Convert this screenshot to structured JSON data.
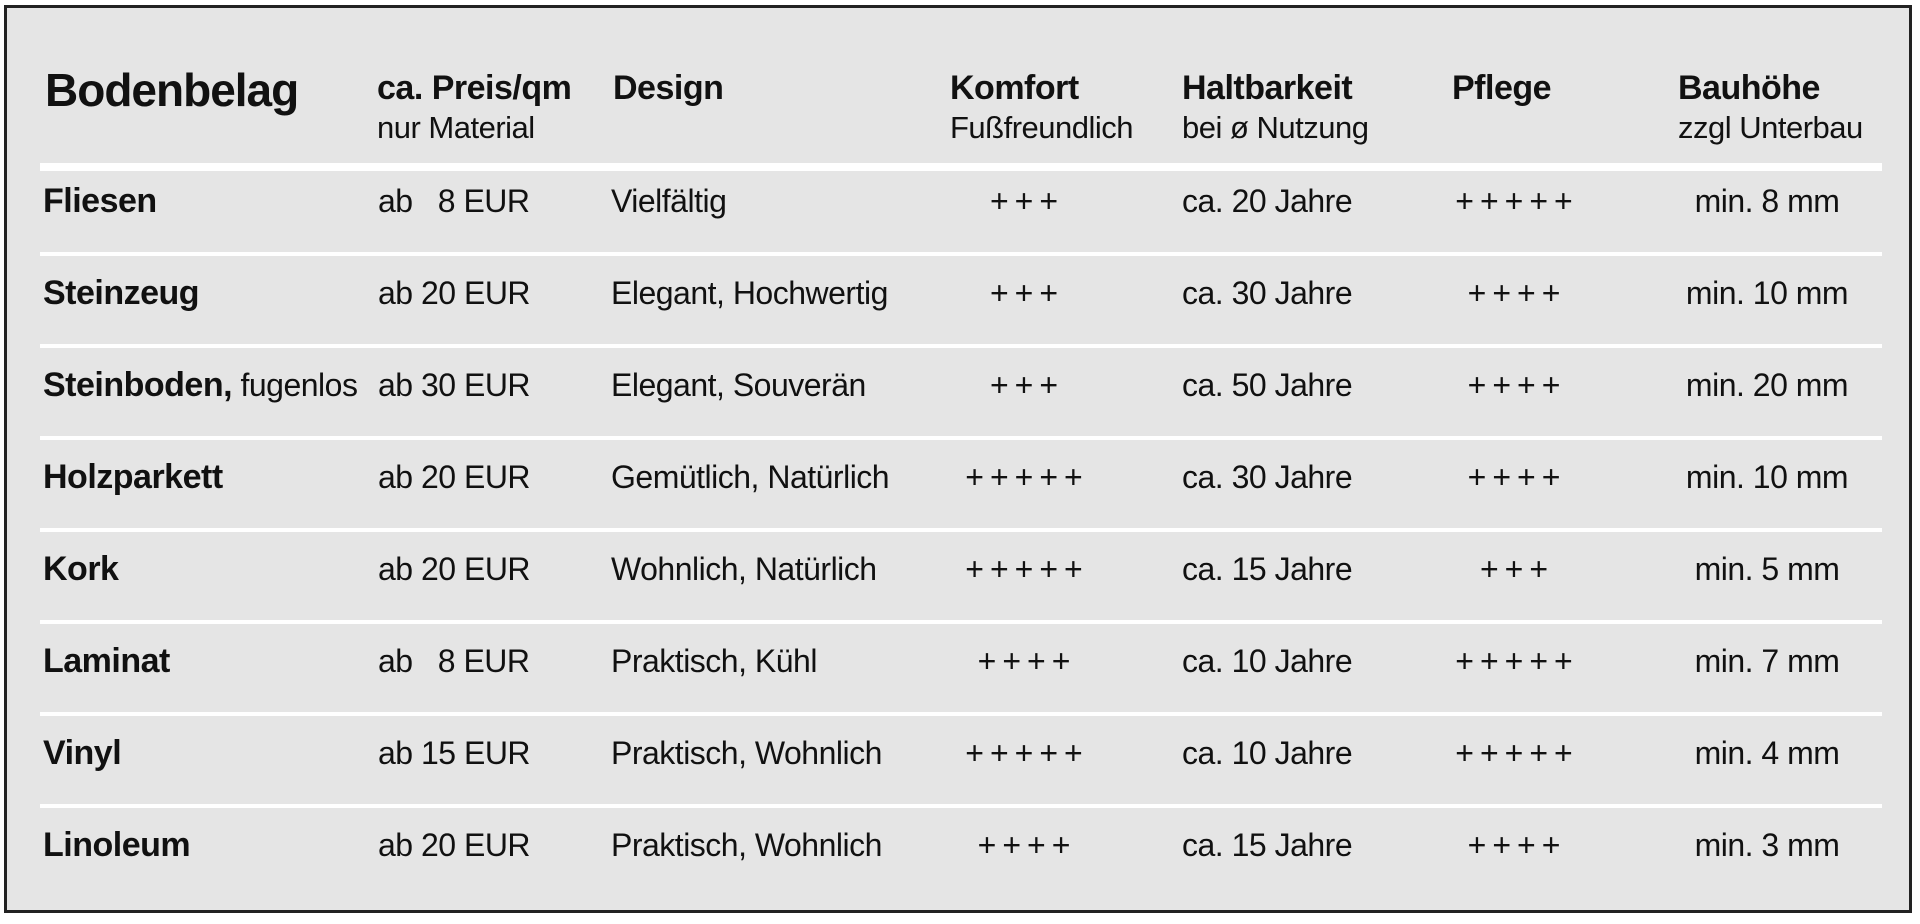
{
  "header": {
    "title": "Bodenbelag",
    "columns": [
      {
        "key": "price",
        "main": "ca. Preis/qm",
        "sub": "nur Material"
      },
      {
        "key": "design",
        "main": "Design",
        "sub": ""
      },
      {
        "key": "comfort",
        "main": "Komfort",
        "sub": "Fußfreundlich"
      },
      {
        "key": "durability",
        "main": "Haltbarkeit",
        "sub": "bei ø Nutzung"
      },
      {
        "key": "care",
        "main": "Pflege",
        "sub": ""
      },
      {
        "key": "height",
        "main": "Bauhöhe",
        "sub": "zzgl Unterbau"
      }
    ]
  },
  "rows": [
    {
      "name": "Fliesen",
      "name_extra": "",
      "price": "ab   8 EUR",
      "design": "Vielfältig",
      "comfort": "+++",
      "durability": "ca. 20 Jahre",
      "care": "+++++",
      "height": "min. 8 mm"
    },
    {
      "name": "Steinzeug",
      "name_extra": "",
      "price": "ab 20 EUR",
      "design": "Elegant, Hochwertig",
      "comfort": "+++",
      "durability": "ca. 30 Jahre",
      "care": "++++",
      "height": "min. 10 mm"
    },
    {
      "name": "Steinboden,",
      "name_extra": " fugenlos",
      "price": "ab 30 EUR",
      "design": "Elegant, Souverän",
      "comfort": "+++",
      "durability": "ca. 50 Jahre",
      "care": "++++",
      "height": "min. 20 mm"
    },
    {
      "name": "Holzparkett",
      "name_extra": "",
      "price": "ab 20 EUR",
      "design": "Gemütlich, Natürlich",
      "comfort": "+++++",
      "durability": "ca. 30 Jahre",
      "care": "++++",
      "height": "min. 10 mm"
    },
    {
      "name": "Kork",
      "name_extra": "",
      "price": "ab 20 EUR",
      "design": "Wohnlich, Natürlich",
      "comfort": "+++++",
      "durability": "ca. 15 Jahre",
      "care": "+++",
      "height": "min. 5 mm"
    },
    {
      "name": "Laminat",
      "name_extra": "",
      "price": "ab   8 EUR",
      "design": "Praktisch, Kühl",
      "comfort": "++++",
      "durability": "ca. 10 Jahre",
      "care": "+++++",
      "height": "min. 7 mm"
    },
    {
      "name": "Vinyl",
      "name_extra": "",
      "price": "ab 15 EUR",
      "design": "Praktisch, Wohnlich",
      "comfort": "+++++",
      "durability": "ca. 10 Jahre",
      "care": "+++++",
      "height": "min. 4 mm"
    },
    {
      "name": "Linoleum",
      "name_extra": "",
      "price": "ab 20 EUR",
      "design": "Praktisch, Wohnlich",
      "comfort": "++++",
      "durability": "ca. 15 Jahre",
      "care": "++++",
      "height": "min. 3 mm"
    }
  ]
}
